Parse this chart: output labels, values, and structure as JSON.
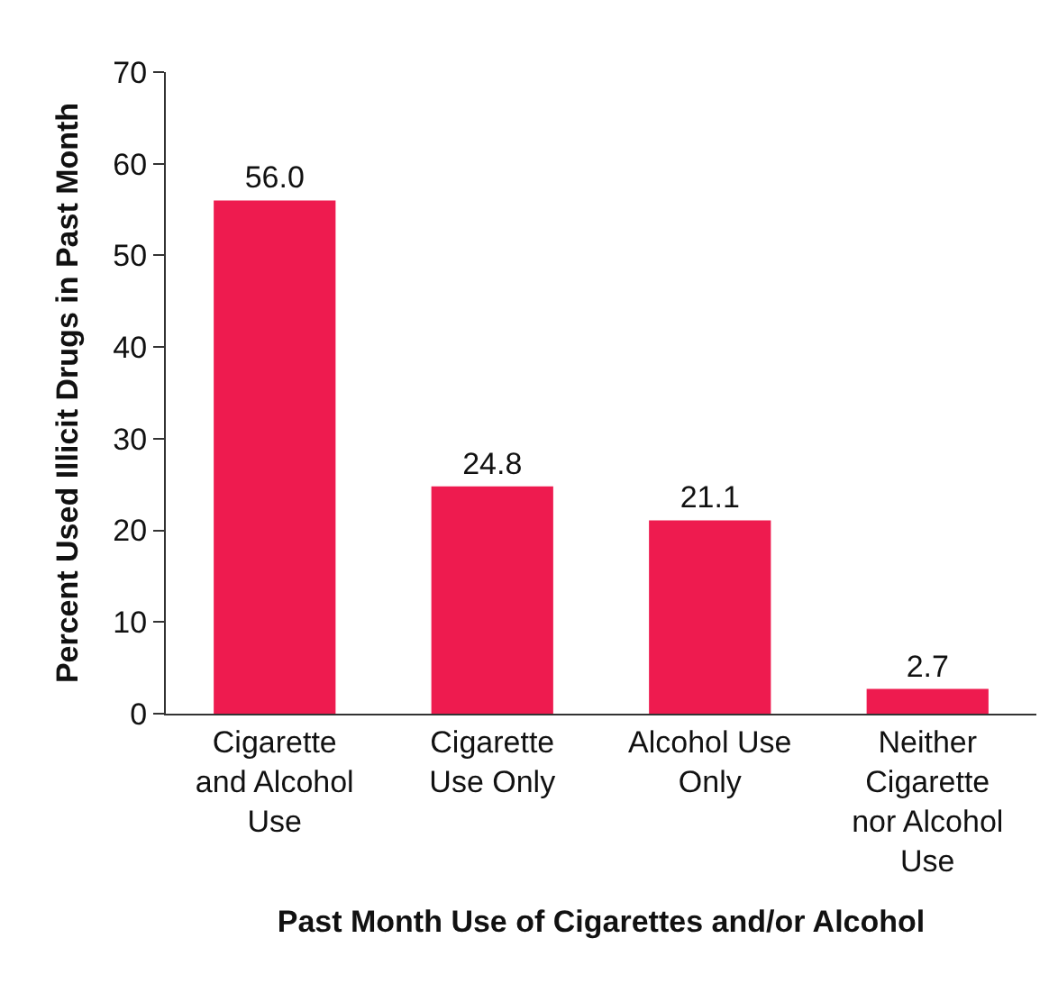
{
  "chart_data": {
    "type": "bar",
    "xlabel": "Past Month Use of Cigarettes and/or Alcohol",
    "ylabel": "Percent Used Illicit Drugs in Past Month",
    "categories": [
      "Cigarette and Alcohol Use",
      "Cigarette Use Only",
      "Alcohol Use Only",
      "Neither Cigarette nor Alcohol Use"
    ],
    "values": [
      56.0,
      24.8,
      21.1,
      2.7
    ],
    "value_labels": [
      "56.0",
      "24.8",
      "21.1",
      "2.7"
    ],
    "color": "#ee1b4f",
    "ylim": [
      0,
      70
    ],
    "yticks": [
      0,
      10,
      20,
      30,
      40,
      50,
      60,
      70
    ],
    "grid": false
  }
}
